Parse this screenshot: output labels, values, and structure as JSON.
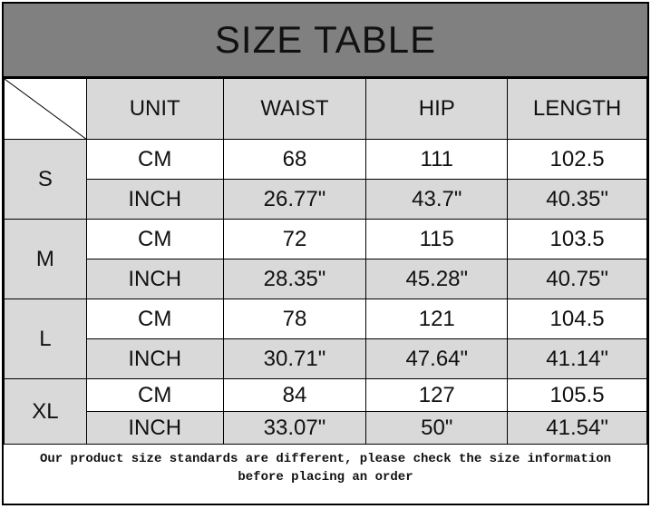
{
  "title": "SIZE TABLE",
  "headers": [
    "UNIT",
    "WAIST",
    "HIP",
    "LENGTH"
  ],
  "sizes": [
    {
      "size": "S",
      "rows": [
        {
          "unit": "CM",
          "waist": "68",
          "hip": "111",
          "length": "102.5"
        },
        {
          "unit": "INCH",
          "waist": "26.77\"",
          "hip": "43.7\"",
          "length": "40.35\""
        }
      ]
    },
    {
      "size": "M",
      "rows": [
        {
          "unit": "CM",
          "waist": "72",
          "hip": "115",
          "length": "103.5"
        },
        {
          "unit": "INCH",
          "waist": "28.35\"",
          "hip": "45.28\"",
          "length": "40.75\""
        }
      ]
    },
    {
      "size": "L",
      "rows": [
        {
          "unit": "CM",
          "waist": "78",
          "hip": "121",
          "length": "104.5"
        },
        {
          "unit": "INCH",
          "waist": "30.71\"",
          "hip": "47.64\"",
          "length": "41.14\""
        }
      ]
    },
    {
      "size": "XL",
      "rows": [
        {
          "unit": "CM",
          "waist": "84",
          "hip": "127",
          "length": "105.5"
        },
        {
          "unit": "INCH",
          "waist": "33.07\"",
          "hip": "50\"",
          "length": "41.54\""
        }
      ]
    }
  ],
  "note_line1": "Our product size standards are different, please check the size information",
  "note_line2": "before placing an order",
  "colors": {
    "title_band": "#808080",
    "header_cell": "#d9d9d9",
    "alt_row": "#d9d9d9"
  }
}
